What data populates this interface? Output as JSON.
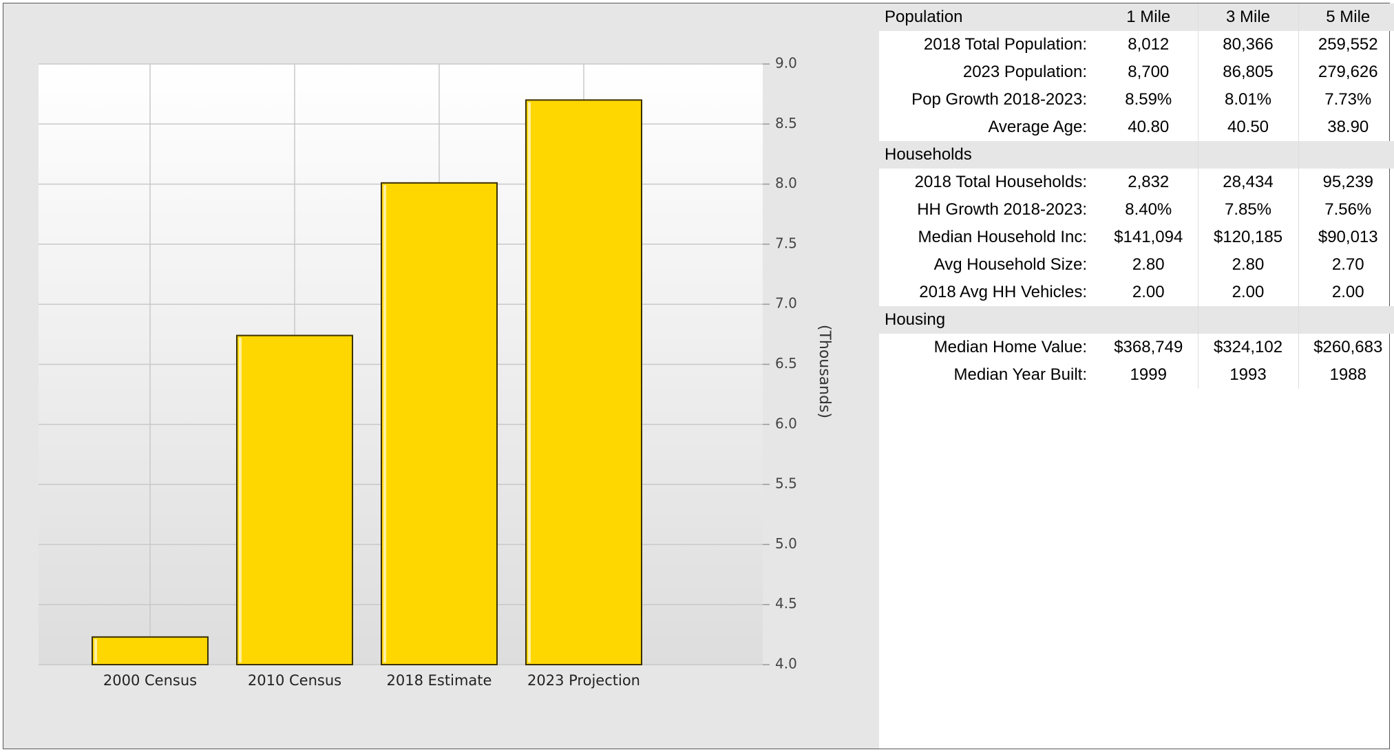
{
  "chart_data": {
    "type": "bar",
    "categories": [
      "2000 Census",
      "2010 Census",
      "2018 Estimate",
      "2023 Projection"
    ],
    "values": [
      4.23,
      6.74,
      8.01,
      8.7
    ],
    "ylabel": "(Thousands)",
    "ylim": [
      4.0,
      9.0
    ],
    "yticks": [
      "4.0",
      "4.5",
      "5.0",
      "5.5",
      "6.0",
      "6.5",
      "7.0",
      "7.5",
      "8.0",
      "8.5",
      "9.0"
    ],
    "y_axis_side": "right",
    "grid": true,
    "bar_color": "#ffd700",
    "background_color": "#e6e6e6"
  },
  "table": {
    "columns": [
      "1 Mile",
      "3 Mile",
      "5 Mile"
    ],
    "sections": [
      {
        "title": "Population",
        "rows": [
          {
            "label": "2018 Total Population:",
            "values": [
              "8,012",
              "80,366",
              "259,552"
            ]
          },
          {
            "label": "2023 Population:",
            "values": [
              "8,700",
              "86,805",
              "279,626"
            ]
          },
          {
            "label": "Pop Growth 2018-2023:",
            "values": [
              "8.59%",
              "8.01%",
              "7.73%"
            ]
          },
          {
            "label": "Average Age:",
            "values": [
              "40.80",
              "40.50",
              "38.90"
            ]
          }
        ]
      },
      {
        "title": "Households",
        "rows": [
          {
            "label": "2018 Total Households:",
            "values": [
              "2,832",
              "28,434",
              "95,239"
            ]
          },
          {
            "label": "HH Growth 2018-2023:",
            "values": [
              "8.40%",
              "7.85%",
              "7.56%"
            ]
          },
          {
            "label": "Median Household Inc:",
            "values": [
              "$141,094",
              "$120,185",
              "$90,013"
            ]
          },
          {
            "label": "Avg Household Size:",
            "values": [
              "2.80",
              "2.80",
              "2.70"
            ]
          },
          {
            "label": "2018 Avg HH Vehicles:",
            "values": [
              "2.00",
              "2.00",
              "2.00"
            ]
          }
        ]
      },
      {
        "title": "Housing",
        "rows": [
          {
            "label": "Median Home Value:",
            "values": [
              "$368,749",
              "$324,102",
              "$260,683"
            ]
          },
          {
            "label": "Median Year Built:",
            "values": [
              "1999",
              "1993",
              "1988"
            ]
          }
        ]
      }
    ]
  }
}
